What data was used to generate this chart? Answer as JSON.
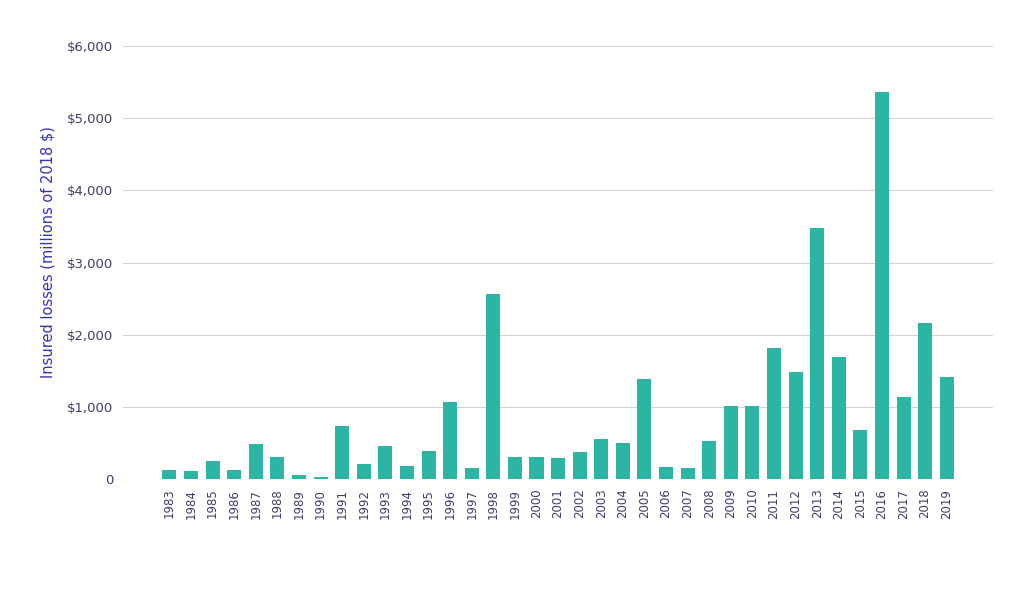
{
  "years": [
    1983,
    1984,
    1985,
    1986,
    1987,
    1988,
    1989,
    1990,
    1991,
    1992,
    1993,
    1994,
    1995,
    1996,
    1997,
    1998,
    1999,
    2000,
    2001,
    2002,
    2003,
    2004,
    2005,
    2006,
    2007,
    2008,
    2009,
    2010,
    2011,
    2012,
    2013,
    2014,
    2015,
    2016,
    2017,
    2018,
    2019
  ],
  "values": [
    120,
    110,
    250,
    130,
    480,
    300,
    50,
    20,
    740,
    210,
    450,
    180,
    390,
    1060,
    150,
    2570,
    310,
    310,
    290,
    380,
    560,
    500,
    1380,
    170,
    150,
    530,
    1010,
    1010,
    1820,
    1480,
    3485,
    1690,
    680,
    5364,
    1130,
    2160,
    1410
  ],
  "bar_color": "#2db5a3",
  "ylabel": "Insured losses (millions of 2018 $)",
  "ylabel_color": "#3333bb",
  "tick_color": "#3d3d6b",
  "grid_color": "#d0d0d0",
  "background_color": "#ffffff",
  "ylim": [
    0,
    6300
  ],
  "yticks": [
    0,
    1000,
    2000,
    3000,
    4000,
    5000,
    6000
  ]
}
